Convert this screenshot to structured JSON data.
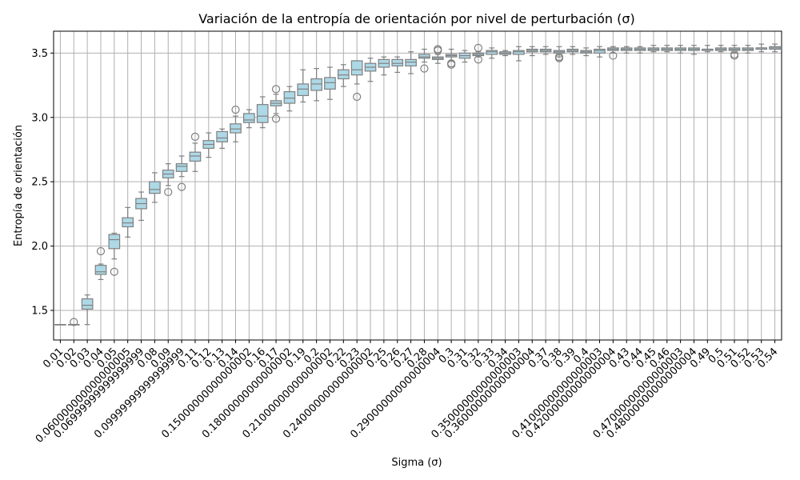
{
  "chart_data": {
    "type": "box",
    "title": "Variación de la entropía de orientación por nivel de perturbación (σ)",
    "xlabel": "Sigma (σ)",
    "ylabel": "Entropía de orientación",
    "ylim": [
      1.27,
      3.67
    ],
    "yticks": [
      1.5,
      2.0,
      2.5,
      3.0,
      3.5
    ],
    "ytick_labels": [
      "1.5",
      "2.0",
      "2.5",
      "3.0",
      "3.5"
    ],
    "grid": true,
    "box_color": "#add8e6",
    "line_color": "#808080",
    "categories": [
      "0.01",
      "0.02",
      "0.03",
      "0.04",
      "0.05",
      "0.060000000000000005",
      "0.06999999999999999",
      "0.08",
      "0.09",
      "0.09999999999999999",
      "0.11",
      "0.12",
      "0.13",
      "0.14",
      "0.15000000000000002",
      "0.16",
      "0.17",
      "0.18000000000000002",
      "0.19",
      "0.2",
      "0.21000000000000002",
      "0.22",
      "0.23",
      "0.24000000000000002",
      "0.25",
      "0.26",
      "0.27",
      "0.28",
      "0.29000000000000004",
      "0.3",
      "0.31",
      "0.32",
      "0.33",
      "0.34",
      "0.35000000000000003",
      "0.36000000000000004",
      "0.37",
      "0.38",
      "0.39",
      "0.4",
      "0.41000000000000003",
      "0.42000000000000004",
      "0.43",
      "0.44",
      "0.45",
      "0.46",
      "0.47000000000000003",
      "0.48000000000000004",
      "0.49",
      "0.5",
      "0.51",
      "0.52",
      "0.53",
      "0.54"
    ],
    "boxes": [
      {
        "min": 1.39,
        "q1": 1.39,
        "median": 1.39,
        "q3": 1.39,
        "max": 1.39,
        "fliers": []
      },
      {
        "min": 1.39,
        "q1": 1.39,
        "median": 1.39,
        "q3": 1.39,
        "max": 1.39,
        "fliers": [
          1.41
        ]
      },
      {
        "min": 1.39,
        "q1": 1.51,
        "median": 1.54,
        "q3": 1.59,
        "max": 1.62,
        "fliers": []
      },
      {
        "min": 1.74,
        "q1": 1.78,
        "median": 1.8,
        "q3": 1.85,
        "max": 1.86,
        "fliers": [
          1.96
        ]
      },
      {
        "min": 1.9,
        "q1": 1.98,
        "median": 2.05,
        "q3": 2.09,
        "max": 2.1,
        "fliers": [
          1.8
        ]
      },
      {
        "min": 2.07,
        "q1": 2.15,
        "median": 2.18,
        "q3": 2.22,
        "max": 2.3,
        "fliers": []
      },
      {
        "min": 2.2,
        "q1": 2.29,
        "median": 2.33,
        "q3": 2.37,
        "max": 2.42,
        "fliers": []
      },
      {
        "min": 2.34,
        "q1": 2.41,
        "median": 2.44,
        "q3": 2.5,
        "max": 2.57,
        "fliers": []
      },
      {
        "min": 2.47,
        "q1": 2.53,
        "median": 2.56,
        "q3": 2.59,
        "max": 2.64,
        "fliers": [
          2.42
        ]
      },
      {
        "min": 2.54,
        "q1": 2.58,
        "median": 2.62,
        "q3": 2.64,
        "max": 2.7,
        "fliers": [
          2.46
        ]
      },
      {
        "min": 2.58,
        "q1": 2.66,
        "median": 2.7,
        "q3": 2.73,
        "max": 2.8,
        "fliers": [
          2.85
        ]
      },
      {
        "min": 2.69,
        "q1": 2.76,
        "median": 2.79,
        "q3": 2.82,
        "max": 2.88,
        "fliers": []
      },
      {
        "min": 2.76,
        "q1": 2.81,
        "median": 2.84,
        "q3": 2.89,
        "max": 2.91,
        "fliers": []
      },
      {
        "min": 2.81,
        "q1": 2.88,
        "median": 2.91,
        "q3": 2.95,
        "max": 3.01,
        "fliers": [
          3.06
        ]
      },
      {
        "min": 2.92,
        "q1": 2.96,
        "median": 2.98,
        "q3": 3.03,
        "max": 3.06,
        "fliers": []
      },
      {
        "min": 2.92,
        "q1": 2.96,
        "median": 3.01,
        "q3": 3.1,
        "max": 3.16,
        "fliers": []
      },
      {
        "min": 3.03,
        "q1": 3.09,
        "median": 3.11,
        "q3": 3.13,
        "max": 3.18,
        "fliers": [
          3.22,
          2.99
        ]
      },
      {
        "min": 3.05,
        "q1": 3.11,
        "median": 3.15,
        "q3": 3.2,
        "max": 3.24,
        "fliers": []
      },
      {
        "min": 3.12,
        "q1": 3.17,
        "median": 3.22,
        "q3": 3.26,
        "max": 3.37,
        "fliers": []
      },
      {
        "min": 3.13,
        "q1": 3.21,
        "median": 3.26,
        "q3": 3.3,
        "max": 3.38,
        "fliers": []
      },
      {
        "min": 3.14,
        "q1": 3.22,
        "median": 3.27,
        "q3": 3.31,
        "max": 3.39,
        "fliers": []
      },
      {
        "min": 3.24,
        "q1": 3.3,
        "median": 3.33,
        "q3": 3.37,
        "max": 3.41,
        "fliers": []
      },
      {
        "min": 3.26,
        "q1": 3.33,
        "median": 3.37,
        "q3": 3.44,
        "max": 3.44,
        "fliers": [
          3.16
        ]
      },
      {
        "min": 3.28,
        "q1": 3.36,
        "median": 3.39,
        "q3": 3.42,
        "max": 3.46,
        "fliers": []
      },
      {
        "min": 3.33,
        "q1": 3.39,
        "median": 3.42,
        "q3": 3.45,
        "max": 3.47,
        "fliers": []
      },
      {
        "min": 3.35,
        "q1": 3.4,
        "median": 3.42,
        "q3": 3.45,
        "max": 3.47,
        "fliers": []
      },
      {
        "min": 3.34,
        "q1": 3.4,
        "median": 3.43,
        "q3": 3.45,
        "max": 3.51,
        "fliers": []
      },
      {
        "min": 3.43,
        "q1": 3.46,
        "median": 3.47,
        "q3": 3.49,
        "max": 3.53,
        "fliers": [
          3.38
        ]
      },
      {
        "min": 3.42,
        "q1": 3.45,
        "median": 3.46,
        "q3": 3.47,
        "max": 3.49,
        "fliers": [
          3.53,
          3.52
        ]
      },
      {
        "min": 3.44,
        "q1": 3.47,
        "median": 3.48,
        "q3": 3.49,
        "max": 3.53,
        "fliers": [
          3.42,
          3.41
        ]
      },
      {
        "min": 3.43,
        "q1": 3.46,
        "median": 3.48,
        "q3": 3.5,
        "max": 3.52,
        "fliers": []
      },
      {
        "min": 3.47,
        "q1": 3.48,
        "median": 3.49,
        "q3": 3.5,
        "max": 3.51,
        "fliers": [
          3.54,
          3.45
        ]
      },
      {
        "min": 3.46,
        "q1": 3.49,
        "median": 3.51,
        "q3": 3.52,
        "max": 3.54,
        "fliers": []
      },
      {
        "min": 3.48,
        "q1": 3.49,
        "median": 3.5,
        "q3": 3.51,
        "max": 3.52,
        "fliers": []
      },
      {
        "min": 3.44,
        "q1": 3.49,
        "median": 3.51,
        "q3": 3.52,
        "max": 3.55,
        "fliers": []
      },
      {
        "min": 3.48,
        "q1": 3.51,
        "median": 3.52,
        "q3": 3.53,
        "max": 3.55,
        "fliers": []
      },
      {
        "min": 3.49,
        "q1": 3.51,
        "median": 3.52,
        "q3": 3.53,
        "max": 3.55,
        "fliers": []
      },
      {
        "min": 3.47,
        "q1": 3.5,
        "median": 3.51,
        "q3": 3.52,
        "max": 3.55,
        "fliers": [
          3.47,
          3.46
        ]
      },
      {
        "min": 3.49,
        "q1": 3.51,
        "median": 3.52,
        "q3": 3.53,
        "max": 3.55,
        "fliers": []
      },
      {
        "min": 3.48,
        "q1": 3.5,
        "median": 3.51,
        "q3": 3.52,
        "max": 3.54,
        "fliers": []
      },
      {
        "min": 3.47,
        "q1": 3.5,
        "median": 3.52,
        "q3": 3.53,
        "max": 3.55,
        "fliers": []
      },
      {
        "min": 3.5,
        "q1": 3.52,
        "median": 3.53,
        "q3": 3.54,
        "max": 3.55,
        "fliers": [
          3.48
        ]
      },
      {
        "min": 3.5,
        "q1": 3.52,
        "median": 3.53,
        "q3": 3.54,
        "max": 3.55,
        "fliers": []
      },
      {
        "min": 3.5,
        "q1": 3.52,
        "median": 3.53,
        "q3": 3.54,
        "max": 3.55,
        "fliers": []
      },
      {
        "min": 3.51,
        "q1": 3.52,
        "median": 3.53,
        "q3": 3.54,
        "max": 3.56,
        "fliers": []
      },
      {
        "min": 3.51,
        "q1": 3.52,
        "median": 3.53,
        "q3": 3.54,
        "max": 3.56,
        "fliers": []
      },
      {
        "min": 3.5,
        "q1": 3.52,
        "median": 3.53,
        "q3": 3.54,
        "max": 3.56,
        "fliers": []
      },
      {
        "min": 3.49,
        "q1": 3.52,
        "median": 3.53,
        "q3": 3.54,
        "max": 3.56,
        "fliers": []
      },
      {
        "min": 3.51,
        "q1": 3.52,
        "median": 3.53,
        "q3": 3.53,
        "max": 3.56,
        "fliers": []
      },
      {
        "min": 3.51,
        "q1": 3.52,
        "median": 3.53,
        "q3": 3.54,
        "max": 3.56,
        "fliers": []
      },
      {
        "min": 3.5,
        "q1": 3.52,
        "median": 3.53,
        "q3": 3.54,
        "max": 3.56,
        "fliers": [
          3.49,
          3.48
        ]
      },
      {
        "min": 3.5,
        "q1": 3.52,
        "median": 3.53,
        "q3": 3.54,
        "max": 3.56,
        "fliers": []
      },
      {
        "min": 3.51,
        "q1": 3.53,
        "median": 3.54,
        "q3": 3.54,
        "max": 3.57,
        "fliers": []
      },
      {
        "min": 3.51,
        "q1": 3.53,
        "median": 3.54,
        "q3": 3.55,
        "max": 3.57,
        "fliers": []
      }
    ]
  }
}
